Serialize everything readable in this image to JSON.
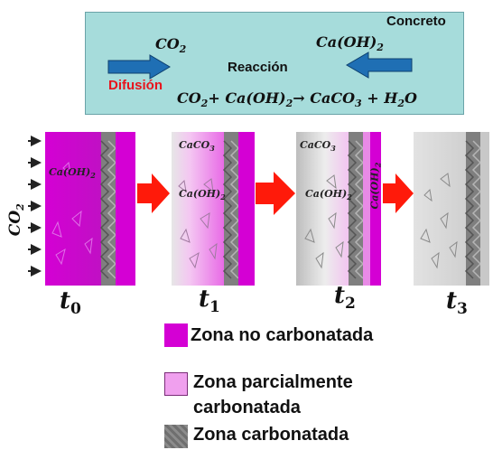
{
  "box": {
    "concrete_label": "Concreto",
    "co2_label": "CO",
    "co2_sub": "2",
    "caoh_label": "Ca(OH)",
    "caoh_sub": "2",
    "reaction_label": "Reacción",
    "diffusion_label": "Difusión",
    "equation": {
      "co2": "CO",
      "co2_sub": "2",
      "plus1": "+ ",
      "caoh": "Ca(OH)",
      "caoh_sub": "2",
      "arrow": "→ ",
      "caco3": "CaCO",
      "caco3_sub": "3",
      "plus2": " + ",
      "h2o_h": "H",
      "h2o_sub": "2",
      "h2o_o": "O"
    }
  },
  "side_label": {
    "text": "CO",
    "sub": "2"
  },
  "panels": [
    {
      "id": "t0",
      "labels": [
        "Ca(OH)"
      ],
      "label_sub": "2"
    },
    {
      "id": "t1",
      "labels": [
        "CaCO",
        "Ca(OH)"
      ],
      "caco_sub": "3",
      "caoh_sub": "2"
    },
    {
      "id": "t2",
      "labels": [
        "CaCO",
        "Ca(OH)",
        "Ca(OH)"
      ],
      "caco_sub": "3",
      "caoh_sub": "2"
    },
    {
      "id": "t3",
      "labels": []
    }
  ],
  "time_labels": [
    {
      "t": "t",
      "sub": "0"
    },
    {
      "t": "t",
      "sub": "1"
    },
    {
      "t": "t",
      "sub": "2"
    },
    {
      "t": "t",
      "sub": "3"
    }
  ],
  "legend": [
    {
      "label": "Zona no carbonatada",
      "color": "#d400d4"
    },
    {
      "label": "Zona parcialmente",
      "label2": "carbonatada",
      "color": "#f0a0ee"
    },
    {
      "label": "Zona carbonatada",
      "color": "#7a7a7a"
    }
  ],
  "colors": {
    "magenta": "#d400d4",
    "light_magenta": "#f3a6f0",
    "gray": "#8a8a8a",
    "arrow_blue": "#1f6fb4",
    "arrow_red": "#ff1a0a",
    "diffusion_red": "#e8141c",
    "box_bg": "#a6dcdb"
  }
}
